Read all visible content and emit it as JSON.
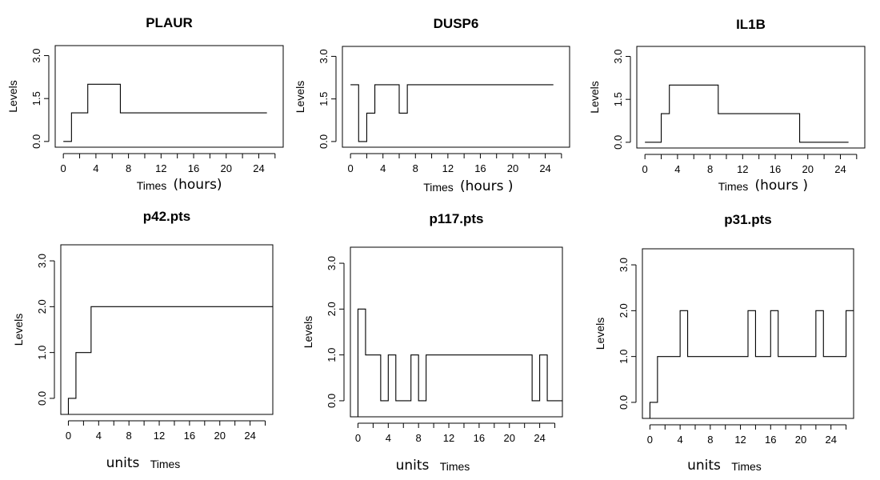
{
  "chart_data": [
    {
      "id": "plaur",
      "type": "line",
      "step": true,
      "title": "PLAUR",
      "xlabel": "Times",
      "xunit": "(hours)",
      "unit_style": "suffix",
      "ylabel": "Levels",
      "xlim": [
        -1.0,
        27.0
      ],
      "ylim": [
        -0.2,
        3.35
      ],
      "xticks": [
        0,
        4,
        8,
        12,
        16,
        20,
        24
      ],
      "xminor": [
        2,
        6,
        10,
        14,
        18,
        22,
        26
      ],
      "yticks": [
        0.0,
        1.5,
        3.0
      ],
      "yticklabels": [
        "0.0",
        "1.5",
        "3.0"
      ],
      "x": [
        0,
        1,
        3,
        7,
        25
      ],
      "y": [
        0,
        1,
        2,
        1,
        1
      ]
    },
    {
      "id": "dusp6",
      "type": "line",
      "step": true,
      "title": "DUSP6",
      "xlabel": "Times",
      "xunit": "(hours )",
      "unit_style": "suffix",
      "ylabel": "Levels",
      "xlim": [
        -1.0,
        27.0
      ],
      "ylim": [
        -0.2,
        3.35
      ],
      "xticks": [
        0,
        4,
        8,
        12,
        16,
        20,
        24
      ],
      "xminor": [
        2,
        6,
        10,
        14,
        18,
        22,
        26
      ],
      "yticks": [
        0.0,
        1.5,
        3.0
      ],
      "yticklabels": [
        "0.0",
        "1.5",
        "3.0"
      ],
      "x": [
        0,
        1,
        2,
        3,
        6,
        7,
        25
      ],
      "y": [
        2,
        0,
        1,
        2,
        1,
        2,
        2
      ]
    },
    {
      "id": "il1b",
      "type": "line",
      "step": true,
      "title": "IL1B",
      "xlabel": "Times",
      "xunit": "(hours )",
      "unit_style": "suffix",
      "ylabel": "Levels",
      "xlim": [
        -1.0,
        27.0
      ],
      "ylim": [
        -0.2,
        3.35
      ],
      "xticks": [
        0,
        4,
        8,
        12,
        16,
        20,
        24
      ],
      "xminor": [
        2,
        6,
        10,
        14,
        18,
        22,
        26
      ],
      "yticks": [
        0.0,
        1.5,
        3.0
      ],
      "yticklabels": [
        "0.0",
        "1.5",
        "3.0"
      ],
      "x": [
        0,
        2,
        3,
        9,
        19,
        25
      ],
      "y": [
        0,
        1,
        2,
        1,
        0,
        0
      ]
    },
    {
      "id": "p42",
      "type": "line",
      "step": true,
      "title": "p42.pts",
      "xlabel": "Times",
      "xunit": "units",
      "unit_style": "prefix",
      "ylabel": "Levels",
      "xlim": [
        -1.0,
        27.0
      ],
      "ylim": [
        -0.35,
        3.35
      ],
      "xticks": [
        0,
        4,
        8,
        12,
        16,
        20,
        24
      ],
      "xminor": [
        2,
        6,
        10,
        14,
        18,
        22,
        26
      ],
      "yticks": [
        0.0,
        1.0,
        2.0,
        3.0
      ],
      "yticklabels": [
        "0.0",
        "1.0",
        "2.0",
        "3.0"
      ],
      "x": [
        0,
        1,
        3,
        27
      ],
      "y": [
        0,
        1,
        2,
        2
      ],
      "drop_start": true
    },
    {
      "id": "p117",
      "type": "line",
      "step": true,
      "title": "p117.pts",
      "xlabel": "Times",
      "xunit": "units",
      "unit_style": "prefix",
      "ylabel": "Levels",
      "xlim": [
        -1.0,
        27.0
      ],
      "ylim": [
        -0.35,
        3.35
      ],
      "xticks": [
        0,
        4,
        8,
        12,
        16,
        20,
        24
      ],
      "xminor": [
        2,
        6,
        10,
        14,
        18,
        22,
        26
      ],
      "yticks": [
        0.0,
        1.0,
        2.0,
        3.0
      ],
      "yticklabels": [
        "0.0",
        "1.0",
        "2.0",
        "3.0"
      ],
      "x": [
        0,
        1,
        3,
        4,
        5,
        7,
        8,
        9,
        23,
        24,
        25,
        27
      ],
      "y": [
        2,
        1,
        0,
        1,
        0,
        1,
        0,
        1,
        0,
        1,
        0,
        0
      ],
      "drop_start": true
    },
    {
      "id": "p31",
      "type": "line",
      "step": true,
      "title": "p31.pts",
      "xlabel": "Times",
      "xunit": "units",
      "unit_style": "prefix",
      "ylabel": "Levels",
      "xlim": [
        -1.0,
        27.0
      ],
      "ylim": [
        -0.35,
        3.35
      ],
      "xticks": [
        0,
        4,
        8,
        12,
        16,
        20,
        24
      ],
      "xminor": [
        2,
        6,
        10,
        14,
        18,
        22,
        26
      ],
      "yticks": [
        0.0,
        1.0,
        2.0,
        3.0
      ],
      "yticklabels": [
        "0.0",
        "1.0",
        "2.0",
        "3.0"
      ],
      "x": [
        0,
        1,
        4,
        5,
        13,
        14,
        16,
        17,
        22,
        23,
        26,
        27
      ],
      "y": [
        0,
        1,
        2,
        1,
        2,
        1,
        2,
        1,
        2,
        1,
        2,
        2
      ],
      "drop_start": true
    }
  ]
}
